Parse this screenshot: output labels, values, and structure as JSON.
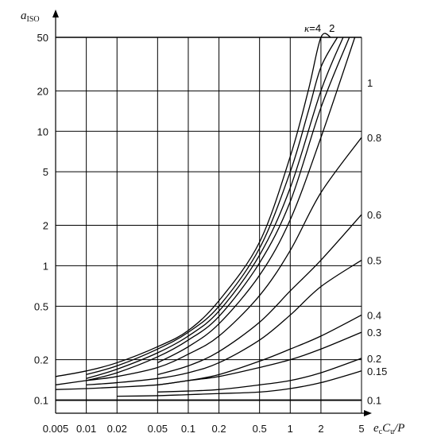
{
  "chart_data": {
    "type": "line",
    "title": "",
    "ylabel": "a_ISO",
    "ylabel_main": "a",
    "ylabel_sub": "ISO",
    "xlabel": "e_c C_u / P",
    "xlabel_parts": {
      "e": "e",
      "e_sub": "c",
      "C": "C",
      "C_sub": "u",
      "rest": "/P"
    },
    "x_scale": "log",
    "y_scale": "log",
    "xlim": [
      0.005,
      5
    ],
    "ylim": [
      0.08,
      50
    ],
    "grid": true,
    "x_ticks": [
      0.005,
      0.01,
      0.02,
      0.05,
      0.1,
      0.2,
      0.5,
      1,
      2,
      5
    ],
    "x_tick_labels": [
      "0.005",
      "0.01",
      "0.02",
      "0.05",
      "0.1",
      "0.2",
      "0.5",
      "1",
      "2",
      "5"
    ],
    "y_ticks": [
      0.1,
      0.2,
      0.5,
      1,
      2,
      5,
      10,
      20,
      50
    ],
    "y_tick_labels": [
      "0.1",
      "0.2",
      "0.5",
      "1",
      "2",
      "5",
      "10",
      "20",
      "50"
    ],
    "top_annotation": {
      "kappa_symbol": "κ",
      "eq": "=",
      "first_value": "4",
      "second_value": "2"
    },
    "series": [
      {
        "label": "4",
        "x": [
          0.005,
          0.01,
          0.02,
          0.05,
          0.1,
          0.2,
          0.5,
          1,
          1.5,
          2,
          2.5
        ],
        "y": [
          0.15,
          0.165,
          0.19,
          0.25,
          0.33,
          0.55,
          1.5,
          6.5,
          20,
          50,
          50
        ]
      },
      {
        "label": "",
        "x": [
          0.01,
          0.02,
          0.05,
          0.1,
          0.2,
          0.5,
          1,
          1.5,
          2,
          2.9
        ],
        "y": [
          0.155,
          0.18,
          0.24,
          0.32,
          0.5,
          1.35,
          5.0,
          14,
          30,
          50
        ]
      },
      {
        "label": "",
        "x": [
          0.01,
          0.02,
          0.05,
          0.1,
          0.2,
          0.5,
          1,
          2,
          3.3
        ],
        "y": [
          0.145,
          0.17,
          0.225,
          0.3,
          0.46,
          1.2,
          3.8,
          20,
          50
        ]
      },
      {
        "label": "2",
        "x": [
          0.01,
          0.02,
          0.05,
          0.1,
          0.2,
          0.5,
          1,
          2,
          3.8
        ],
        "y": [
          0.14,
          0.16,
          0.21,
          0.28,
          0.42,
          1.05,
          3.0,
          15,
          50
        ]
      },
      {
        "label": "1",
        "x": [
          0.05,
          0.1,
          0.2,
          0.5,
          1,
          2,
          4.3
        ],
        "y": [
          0.19,
          0.25,
          0.37,
          0.85,
          2.2,
          9,
          50
        ]
      },
      {
        "label": "0.8",
        "x": [
          0.005,
          0.01,
          0.02,
          0.05,
          0.1,
          0.2,
          0.5,
          1,
          2,
          5
        ],
        "y": [
          0.13,
          0.14,
          0.15,
          0.175,
          0.22,
          0.3,
          0.6,
          1.3,
          3.5,
          9
        ]
      },
      {
        "label": "0.6",
        "x": [
          0.05,
          0.1,
          0.2,
          0.5,
          1,
          2,
          5
        ],
        "y": [
          0.155,
          0.18,
          0.23,
          0.38,
          0.65,
          1.1,
          2.4
        ]
      },
      {
        "label": "0.5",
        "x": [
          0.01,
          0.02,
          0.05,
          0.1,
          0.2,
          0.5,
          1,
          2,
          5
        ],
        "y": [
          0.13,
          0.135,
          0.145,
          0.16,
          0.19,
          0.28,
          0.43,
          0.7,
          1.1
        ]
      },
      {
        "label": "0.4",
        "x": [
          0.05,
          0.1,
          0.2,
          0.5,
          1,
          2,
          5
        ],
        "y": [
          0.13,
          0.14,
          0.155,
          0.195,
          0.24,
          0.3,
          0.43
        ]
      },
      {
        "label": "0.3",
        "x": [
          0.005,
          0.01,
          0.02,
          0.05,
          0.1,
          0.2,
          0.5,
          1,
          2,
          5
        ],
        "y": [
          0.12,
          0.122,
          0.125,
          0.13,
          0.14,
          0.15,
          0.175,
          0.2,
          0.24,
          0.32
        ]
      },
      {
        "label": "0.2",
        "x": [
          0.05,
          0.1,
          0.2,
          0.5,
          1,
          2,
          5
        ],
        "y": [
          0.115,
          0.117,
          0.12,
          0.13,
          0.14,
          0.16,
          0.205
        ]
      },
      {
        "label": "0.15",
        "x": [
          0.02,
          0.05,
          0.1,
          0.2,
          0.5,
          1,
          2,
          5
        ],
        "y": [
          0.107,
          0.108,
          0.11,
          0.112,
          0.115,
          0.122,
          0.135,
          0.165
        ]
      },
      {
        "label": "0.1",
        "x": [
          0.005,
          5
        ],
        "y": [
          0.1,
          0.1
        ]
      }
    ]
  }
}
